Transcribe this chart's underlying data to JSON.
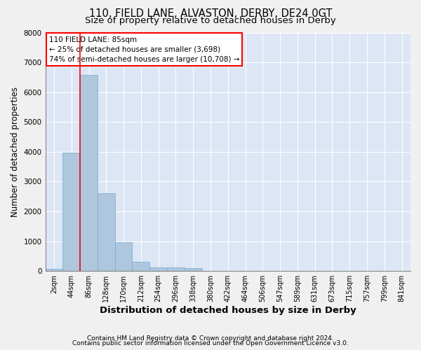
{
  "title_line1": "110, FIELD LANE, ALVASTON, DERBY, DE24 0GT",
  "title_line2": "Size of property relative to detached houses in Derby",
  "xlabel": "Distribution of detached houses by size in Derby",
  "ylabel": "Number of detached properties",
  "bar_color": "#aec6de",
  "bar_edge_color": "#7aaac8",
  "background_color": "#dce6f5",
  "grid_color": "#ffffff",
  "categories": [
    "2sqm",
    "44sqm",
    "86sqm",
    "128sqm",
    "170sqm",
    "212sqm",
    "254sqm",
    "296sqm",
    "338sqm",
    "380sqm",
    "422sqm",
    "464sqm",
    "506sqm",
    "547sqm",
    "589sqm",
    "631sqm",
    "673sqm",
    "715sqm",
    "757sqm",
    "799sqm",
    "841sqm"
  ],
  "values": [
    80,
    3980,
    6580,
    2620,
    960,
    310,
    130,
    110,
    90,
    0,
    0,
    0,
    0,
    0,
    0,
    0,
    0,
    0,
    0,
    0,
    0
  ],
  "ylim": [
    0,
    8000
  ],
  "yticks": [
    0,
    1000,
    2000,
    3000,
    4000,
    5000,
    6000,
    7000,
    8000
  ],
  "annotation_text": "110 FIELD LANE: 85sqm\n← 25% of detached houses are smaller (3,698)\n74% of semi-detached houses are larger (10,708) →",
  "footer_line1": "Contains HM Land Registry data © Crown copyright and database right 2024.",
  "footer_line2": "Contains public sector information licensed under the Open Government Licence v3.0.",
  "title_fontsize": 10.5,
  "subtitle_fontsize": 9.5,
  "ylabel_fontsize": 8.5,
  "xlabel_fontsize": 9.5,
  "tick_fontsize": 7,
  "annotation_fontsize": 7.5,
  "footer_fontsize": 6.5,
  "fig_bg": "#f0f0f0"
}
